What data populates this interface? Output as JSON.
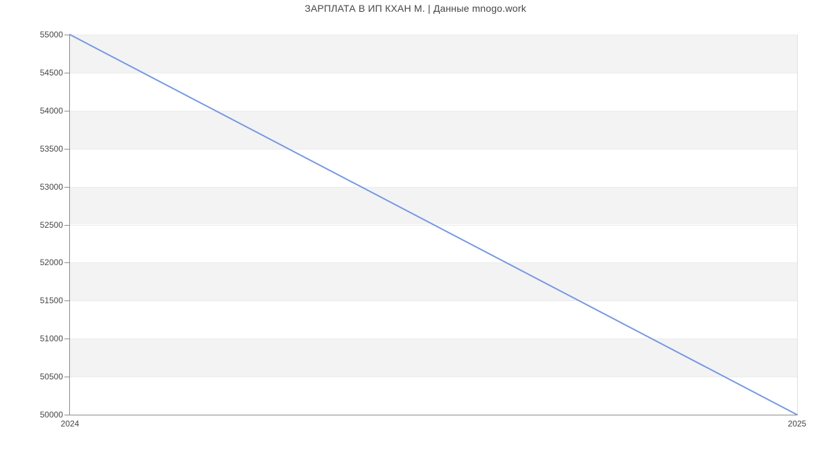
{
  "page": {
    "title": "ЗАРПЛАТА В ИП КХАН М. | Данные mnogo.work"
  },
  "chart_data": {
    "type": "line",
    "title": "ЗАРПЛАТА В ИП КХАН М. | Данные mnogo.work",
    "x": [
      "2024",
      "2025"
    ],
    "series": [
      {
        "name": "ЗАРПЛАТА В ИП КХАН М.",
        "values": [
          55000,
          50000
        ]
      }
    ],
    "xlabel": "",
    "ylabel": "",
    "ylim": [
      50000,
      55000
    ],
    "ytick_step": 500,
    "ytick_labels": [
      "50000",
      "50500",
      "51000",
      "51500",
      "52000",
      "52500",
      "53000",
      "53500",
      "54000",
      "54500",
      "55000"
    ],
    "xtick_labels": [
      "2024",
      "2025"
    ],
    "grid": "alternating-horizontal-bands",
    "legend": "none",
    "colors": {
      "line": "#7598e3",
      "band": "#f3f3f3",
      "band_border": "#ebebeb",
      "axis": "#8a8a8a",
      "plot_right_border": "#e0e0e0",
      "text": "#454545",
      "background": "#ffffff"
    }
  }
}
